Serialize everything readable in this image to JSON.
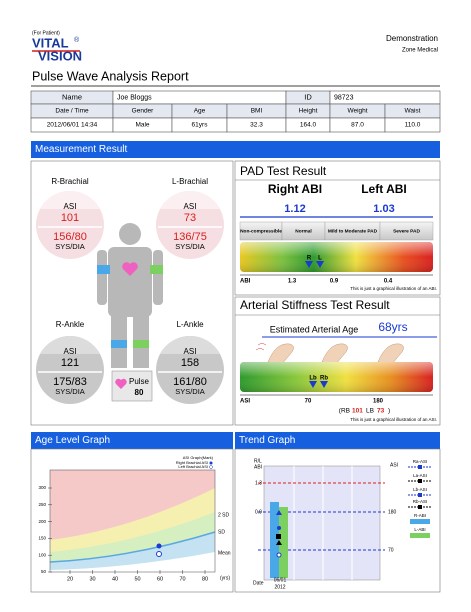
{
  "header": {
    "for": "(For Patient)",
    "logo_top": "VITAL",
    "logo_mark": "®",
    "logo_bottom": "VISION",
    "org": "Demonstration",
    "org_sub": "Zone Medical",
    "title": "Pulse Wave Analysis Report"
  },
  "patient": {
    "name_label": "Name",
    "name": "Joe Bloggs",
    "id_label": "ID",
    "id": "98723",
    "columns": [
      "Date / Time",
      "Gender",
      "Age",
      "BMI",
      "Height",
      "Weight",
      "Waist"
    ],
    "values": [
      "2012/06/01 14:34",
      "Male",
      "61yrs",
      "32.3",
      "164.0",
      "87.0",
      "110.0"
    ]
  },
  "measurement": {
    "title": "Measurement Result",
    "asi_label": "ASI",
    "bp_unit": "SYS/DIA",
    "sites": [
      {
        "name": "R-Brachial",
        "asi": 101,
        "bp": "156/80"
      },
      {
        "name": "L-Brachial",
        "asi": 73,
        "bp": "136/75"
      },
      {
        "name": "R-Ankle",
        "asi": 121,
        "bp": "175/83"
      },
      {
        "name": "L-Ankle",
        "asi": 158,
        "bp": "161/80"
      }
    ],
    "pulse_label": "Pulse",
    "pulse": 80
  },
  "pad": {
    "title": "PAD Test Result",
    "right_label": "Right ABI",
    "left_label": "Left ABI",
    "right": 1.12,
    "left": 1.03,
    "categories": [
      "Non-compressible",
      "Normal",
      "Mild to Moderate PAD",
      "Severe PAD"
    ],
    "marker_r": "R",
    "marker_l": "L",
    "scale_label": "ABI",
    "scale": [
      1.3,
      0.9,
      0.4
    ],
    "note": "This is just a graphical illustration of an ABI."
  },
  "stiffness": {
    "title": "Arterial Stiffness Test Result",
    "age_label": "Estimated Arterial Age",
    "age": "68yrs",
    "marker_lb": "Lb",
    "marker_rb": "Rb",
    "scale_label": "ASI",
    "scale": [
      70,
      180
    ],
    "rb_label": "(RB",
    "rb": 101,
    "lb_label": "LB",
    "lb": 73,
    "close": ")",
    "note": "This is just a graphical illustration of an ASI."
  },
  "age_graph": {
    "title": "Age Level Graph",
    "yticks": [
      300,
      250,
      200,
      150,
      100,
      50
    ],
    "xticks": [
      20,
      30,
      40,
      50,
      60,
      70,
      80
    ],
    "x_unit": "(yrs)",
    "legend": [
      "ASI Graph(Mark)",
      "Right Brachial ASI",
      "Left Brachial ASI"
    ],
    "bands": [
      "2 SD",
      "SD",
      "Mean"
    ]
  },
  "trend": {
    "title": "Trend Graph",
    "left_axis": [
      "R/L",
      "ABI"
    ],
    "right_axis": "ASI",
    "left_ticks": [
      1.3,
      0.9
    ],
    "right_ticks": [
      180,
      70
    ],
    "x_label": "Date",
    "date": "06/01",
    "year": "2012",
    "legend": [
      "Ra-ASI",
      "La-ASI",
      "Lb-ASI",
      "Rb-ASI",
      "R-ABI",
      "L-ABI"
    ]
  }
}
